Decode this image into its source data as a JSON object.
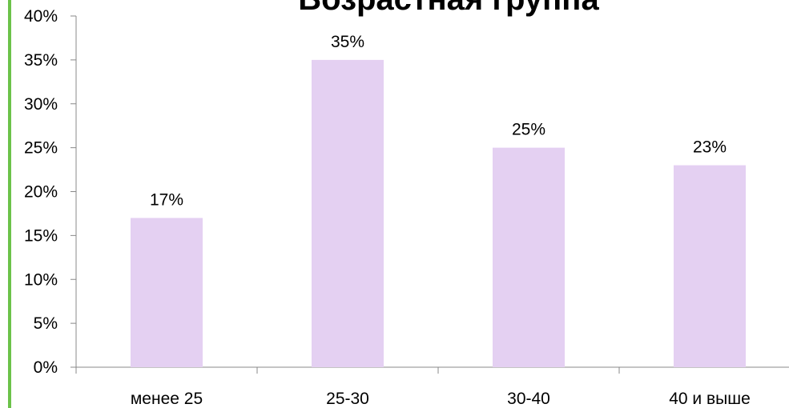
{
  "chart_data": {
    "type": "bar",
    "title": "Возрастная группа",
    "categories": [
      "менее 25",
      "25-30",
      "30-40",
      "40 и выше"
    ],
    "values": [
      17,
      35,
      25,
      23
    ],
    "value_labels": [
      "17%",
      "35%",
      "25%",
      "23%"
    ],
    "color": "#e4d0f2",
    "ylim": [
      0,
      40
    ],
    "yticks": [
      {
        "value": 0,
        "label": "0%"
      },
      {
        "value": 5,
        "label": "5%"
      },
      {
        "value": 10,
        "label": "10%"
      },
      {
        "value": 15,
        "label": "15%"
      },
      {
        "value": 20,
        "label": "20%"
      },
      {
        "value": 25,
        "label": "25%"
      },
      {
        "value": 30,
        "label": "30%"
      },
      {
        "value": 35,
        "label": "35%"
      },
      {
        "value": 40,
        "label": "40%"
      }
    ]
  }
}
